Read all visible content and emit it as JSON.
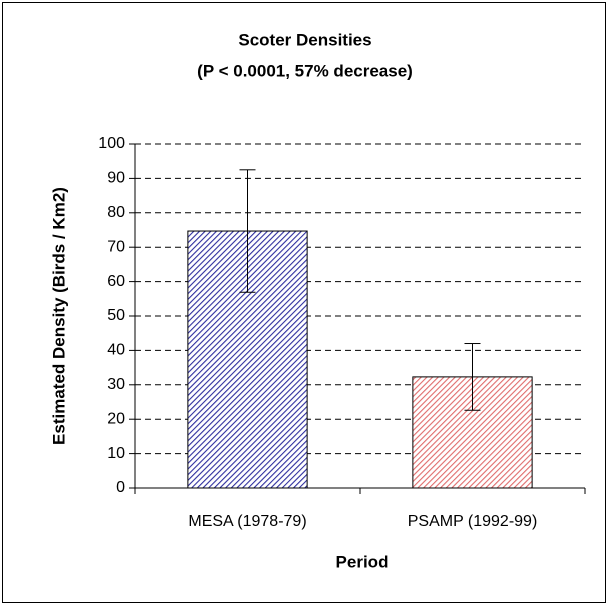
{
  "chart_data": {
    "type": "bar",
    "title": "Scoter Densities",
    "subtitle": "(P < 0.0001, 57% decrease)",
    "x_label": "Period",
    "y_label": "Estimated Density (Birds / Km2)",
    "categories": [
      "MESA (1978-79)",
      "PSAMP (1992-99)"
    ],
    "values": [
      74.7,
      32.3
    ],
    "errors": [
      17.8,
      9.7
    ],
    "colors": [
      "#2e2e9e",
      "#e06c6c"
    ],
    "ylim": [
      0,
      100
    ],
    "yticks": [
      0,
      10,
      20,
      30,
      40,
      50,
      60,
      70,
      80,
      90,
      100
    ],
    "grid": true
  }
}
